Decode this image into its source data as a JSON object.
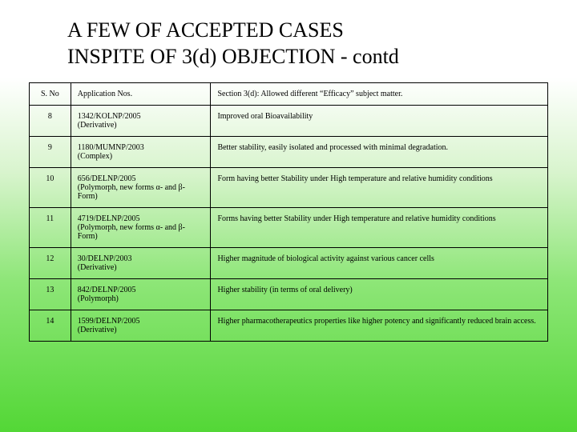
{
  "title_line1": "A FEW OF ACCEPTED CASES",
  "title_line2": "INSPITE OF 3(d) OBJECTION - contd",
  "table": {
    "headers": {
      "sno": "S. No",
      "app": "Application Nos.",
      "desc": "Section 3(d): Allowed different “Efficacy” subject matter."
    },
    "rows": [
      {
        "sno": "8",
        "app_main": "1342/KOLNP/2005",
        "app_sub": "(Derivative)",
        "desc": "Improved oral Bioavailability"
      },
      {
        "sno": "9",
        "app_main": "1180/MUMNP/2003",
        "app_sub": "(Complex)",
        "desc": "Better stability, easily isolated and processed with minimal degradation."
      },
      {
        "sno": "10",
        "app_main": "656/DELNP/2005",
        "app_sub": "(Polymorph, new forms α- and β-Form)",
        "desc": "Form having better Stability under High temperature and relative humidity conditions"
      },
      {
        "sno": "11",
        "app_main": "4719/DELNP/2005",
        "app_sub": "(Polymorph, new forms α- and β-Form)",
        "desc": "Forms having better Stability under High temperature and relative humidity conditions"
      },
      {
        "sno": "12",
        "app_main": "30/DELNP/2003",
        "app_sub": "(Derivative)",
        "desc": "Higher magnitude of biological activity against various cancer cells"
      },
      {
        "sno": "13",
        "app_main": "842/DELNP/2005",
        "app_sub": "(Polymorph)",
        "desc": "Higher stability (in terms of oral delivery)"
      },
      {
        "sno": "14",
        "app_main": "1599/DELNP/2005",
        "app_sub": "(Derivative)",
        "desc": "Higher pharmacotherapeutics properties like higher potency and significantly reduced brain access."
      }
    ]
  },
  "style": {
    "title_fontsize": 26,
    "cell_fontsize": 10,
    "border_color": "#000000",
    "bg_gradient_top": "#ffffff",
    "bg_gradient_bottom": "#53d736"
  }
}
